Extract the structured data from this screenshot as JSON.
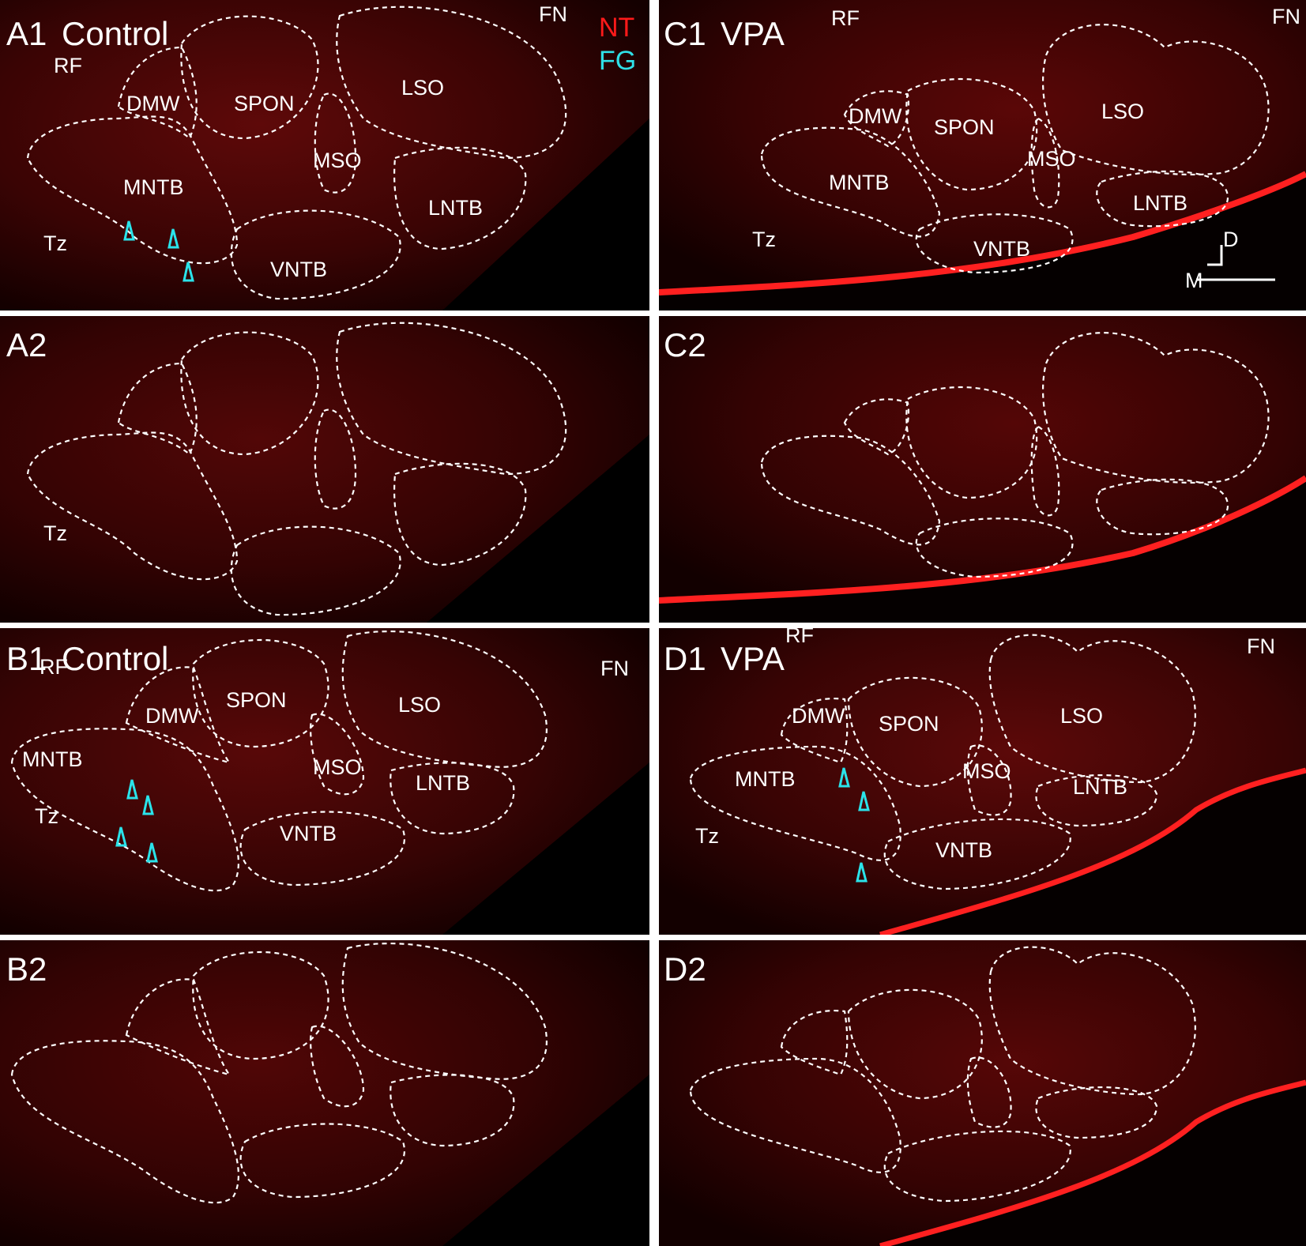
{
  "colors": {
    "nt": "#ff1a1a",
    "fg": "#2fe0e8",
    "outline": "#ffffff"
  },
  "panels": {
    "A1": {
      "label": "A1",
      "group": "Control",
      "regions": {
        "rf": "RF",
        "fn": "FN",
        "dmw": "DMW",
        "spon": "SPON",
        "lso": "LSO",
        "mso": "MSO",
        "mntb": "MNTB",
        "lntb": "LNTB",
        "vntb": "VNTB",
        "tz": "Tz"
      },
      "legend": {
        "nt": "NT",
        "fg": "FG"
      }
    },
    "A2": {
      "label": "A2",
      "regions": {
        "tz": "Tz"
      }
    },
    "B1": {
      "label": "B1",
      "group": "Control",
      "regions": {
        "rf": "RF",
        "fn": "FN",
        "dmw": "DMW",
        "spon": "SPON",
        "lso": "LSO",
        "mso": "MSO",
        "mntb": "MNTB",
        "lntb": "LNTB",
        "vntb": "VNTB",
        "tz": "Tz"
      }
    },
    "B2": {
      "label": "B2"
    },
    "C1": {
      "label": "C1",
      "group": "VPA",
      "regions": {
        "rf": "RF",
        "fn": "FN",
        "dmw": "DMW",
        "spon": "SPON",
        "lso": "LSO",
        "mso": "MSO",
        "mntb": "MNTB",
        "lntb": "LNTB",
        "vntb": "VNTB",
        "tz": "Tz"
      },
      "orientation": {
        "d": "D",
        "m": "M"
      }
    },
    "C2": {
      "label": "C2"
    },
    "D1": {
      "label": "D1",
      "group": "VPA",
      "regions": {
        "rf": "RF",
        "fn": "FN",
        "dmw": "DMW",
        "spon": "SPON",
        "lso": "LSO",
        "mso": "MSO",
        "mntb": "MNTB",
        "lntb": "LNTB",
        "vntb": "VNTB",
        "tz": "Tz"
      }
    },
    "D2": {
      "label": "D2"
    }
  }
}
